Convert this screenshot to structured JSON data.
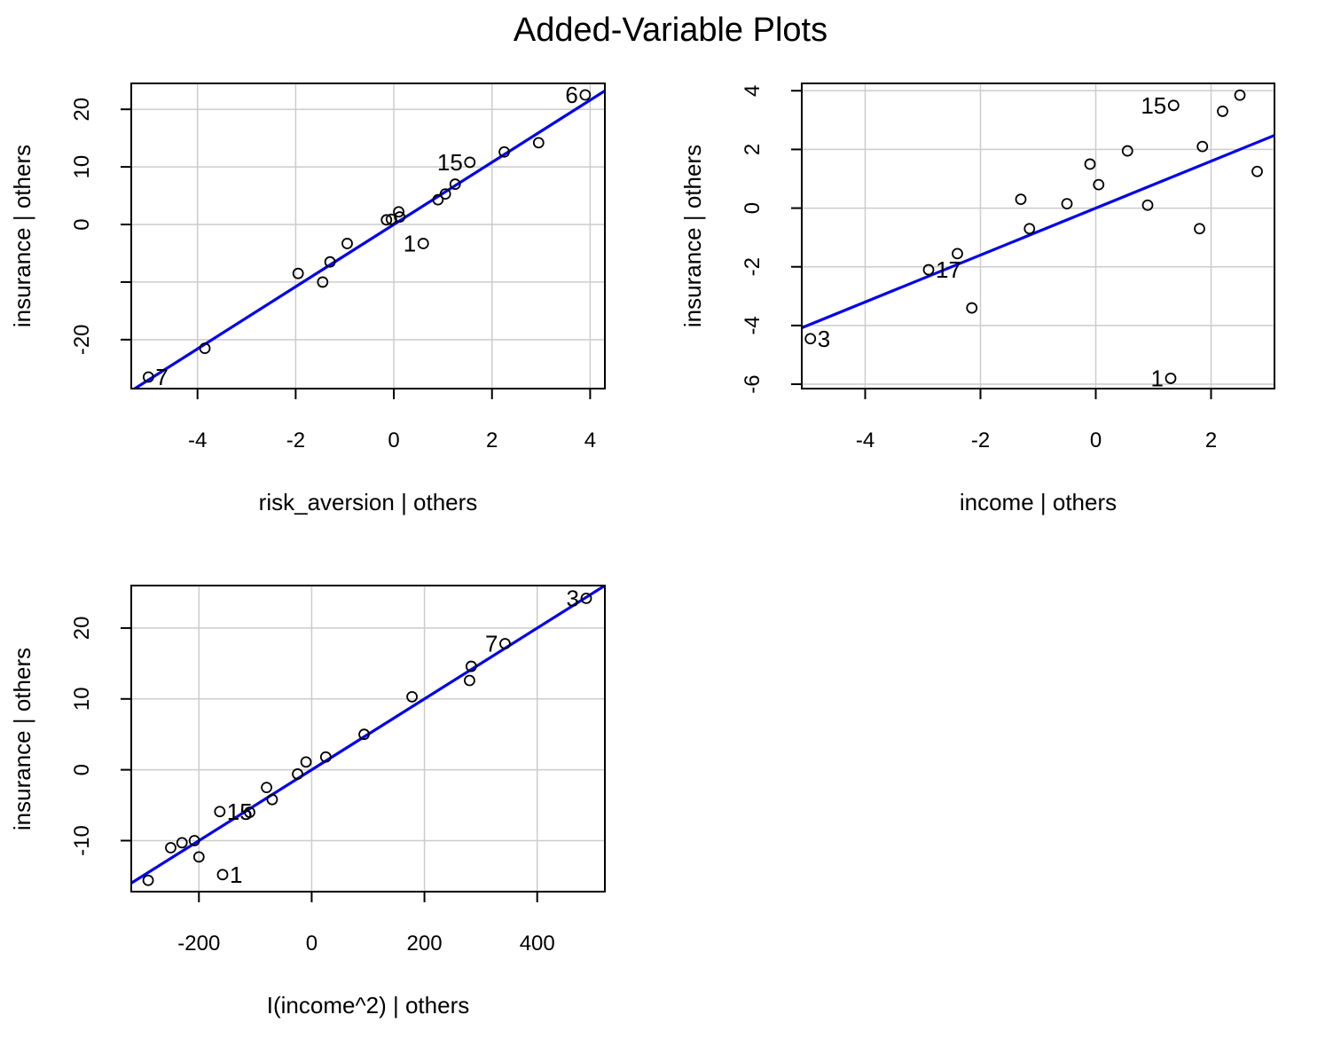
{
  "title": "Added-Variable Plots",
  "colors": {
    "line": "#0000ee",
    "grid": "#cccccc",
    "points": "#000000"
  },
  "chart_data": [
    {
      "type": "scatter",
      "xlabel": "risk_aversion | others",
      "ylabel": "insurance  | others",
      "xlim": [
        -5.35,
        4.3
      ],
      "ylim": [
        -28.5,
        24.5
      ],
      "xticks": [
        -4,
        -2,
        0,
        2,
        4
      ],
      "yticks": [
        -20,
        -10,
        0,
        10,
        20
      ],
      "ytick_labels": [
        "-20",
        "",
        "0",
        "10",
        "20"
      ],
      "grid": true,
      "points": [
        {
          "x": -5.0,
          "y": -26.5,
          "label": "7"
        },
        {
          "x": -3.85,
          "y": -21.5,
          "label": ""
        },
        {
          "x": -1.95,
          "y": -8.5,
          "label": ""
        },
        {
          "x": -1.45,
          "y": -10.0,
          "label": ""
        },
        {
          "x": -1.3,
          "y": -6.5,
          "label": ""
        },
        {
          "x": -0.95,
          "y": -3.3,
          "label": ""
        },
        {
          "x": -0.15,
          "y": 0.8,
          "label": ""
        },
        {
          "x": -0.05,
          "y": 0.9,
          "label": ""
        },
        {
          "x": 0.1,
          "y": 2.2,
          "label": ""
        },
        {
          "x": 0.12,
          "y": 1.3,
          "label": ""
        },
        {
          "x": 0.6,
          "y": -3.3,
          "label": "1"
        },
        {
          "x": 0.9,
          "y": 4.3,
          "label": ""
        },
        {
          "x": 1.05,
          "y": 5.3,
          "label": ""
        },
        {
          "x": 1.25,
          "y": 7.0,
          "label": ""
        },
        {
          "x": 1.55,
          "y": 10.8,
          "label": "15"
        },
        {
          "x": 2.25,
          "y": 12.6,
          "label": ""
        },
        {
          "x": 2.95,
          "y": 14.2,
          "label": ""
        },
        {
          "x": 3.9,
          "y": 22.5,
          "label": "6"
        }
      ],
      "fit_line": {
        "intercept": 0.0,
        "slope": 5.4
      }
    },
    {
      "type": "scatter",
      "xlabel": "income | others",
      "ylabel": "insurance  | others",
      "xlim": [
        -5.1,
        3.1
      ],
      "ylim": [
        -6.15,
        4.25
      ],
      "xticks": [
        -4,
        -2,
        0,
        2
      ],
      "yticks": [
        -6,
        -4,
        -2,
        0,
        2,
        4
      ],
      "ytick_labels": [
        "-6",
        "-4",
        "-2",
        "0",
        "2",
        "4"
      ],
      "grid": true,
      "points": [
        {
          "x": -4.95,
          "y": -4.45,
          "label": "3"
        },
        {
          "x": -2.9,
          "y": -2.1,
          "label": "17"
        },
        {
          "x": -2.4,
          "y": -1.55,
          "label": ""
        },
        {
          "x": -2.15,
          "y": -3.4,
          "label": ""
        },
        {
          "x": -1.3,
          "y": 0.3,
          "label": ""
        },
        {
          "x": -1.15,
          "y": -0.7,
          "label": ""
        },
        {
          "x": -0.5,
          "y": 0.15,
          "label": ""
        },
        {
          "x": -0.1,
          "y": 1.5,
          "label": ""
        },
        {
          "x": 0.05,
          "y": 0.8,
          "label": ""
        },
        {
          "x": 0.55,
          "y": 1.95,
          "label": ""
        },
        {
          "x": 0.9,
          "y": 0.1,
          "label": ""
        },
        {
          "x": 1.3,
          "y": -5.8,
          "label": "1"
        },
        {
          "x": 1.35,
          "y": 3.5,
          "label": "15"
        },
        {
          "x": 1.8,
          "y": -0.7,
          "label": ""
        },
        {
          "x": 1.85,
          "y": 2.1,
          "label": ""
        },
        {
          "x": 2.2,
          "y": 3.3,
          "label": ""
        },
        {
          "x": 2.5,
          "y": 3.85,
          "label": ""
        },
        {
          "x": 2.8,
          "y": 1.25,
          "label": ""
        }
      ],
      "fit_line": {
        "intercept": 0.0,
        "slope": 0.8
      }
    },
    {
      "type": "scatter",
      "xlabel": "I(income^2) | others",
      "ylabel": "insurance  | others",
      "xlim": [
        -320,
        520
      ],
      "ylim": [
        -17.2,
        26.0
      ],
      "xticks": [
        -200,
        0,
        200,
        400
      ],
      "yticks": [
        -10,
        0,
        10,
        20
      ],
      "ytick_labels": [
        "-10",
        "0",
        "10",
        "20"
      ],
      "grid": true,
      "points": [
        {
          "x": -290,
          "y": -15.6,
          "label": ""
        },
        {
          "x": -250,
          "y": -11.0,
          "label": ""
        },
        {
          "x": -230,
          "y": -10.3,
          "label": ""
        },
        {
          "x": -208,
          "y": -10.0,
          "label": ""
        },
        {
          "x": -200,
          "y": -12.3,
          "label": ""
        },
        {
          "x": -158,
          "y": -14.8,
          "label": "1"
        },
        {
          "x": -163,
          "y": -5.9,
          "label": "15"
        },
        {
          "x": -110,
          "y": -6.0,
          "label": ""
        },
        {
          "x": -80,
          "y": -2.5,
          "label": ""
        },
        {
          "x": -70,
          "y": -4.2,
          "label": ""
        },
        {
          "x": -25,
          "y": -0.6,
          "label": ""
        },
        {
          "x": -10,
          "y": 1.1,
          "label": ""
        },
        {
          "x": 25,
          "y": 1.8,
          "label": ""
        },
        {
          "x": 93,
          "y": 5.0,
          "label": ""
        },
        {
          "x": 178,
          "y": 10.3,
          "label": ""
        },
        {
          "x": 280,
          "y": 12.6,
          "label": ""
        },
        {
          "x": 283,
          "y": 14.6,
          "label": ""
        },
        {
          "x": 343,
          "y": 17.8,
          "label": "7"
        },
        {
          "x": 487,
          "y": 24.2,
          "label": "3"
        }
      ],
      "fit_line": {
        "intercept": 0.0,
        "slope": 0.05
      }
    }
  ]
}
